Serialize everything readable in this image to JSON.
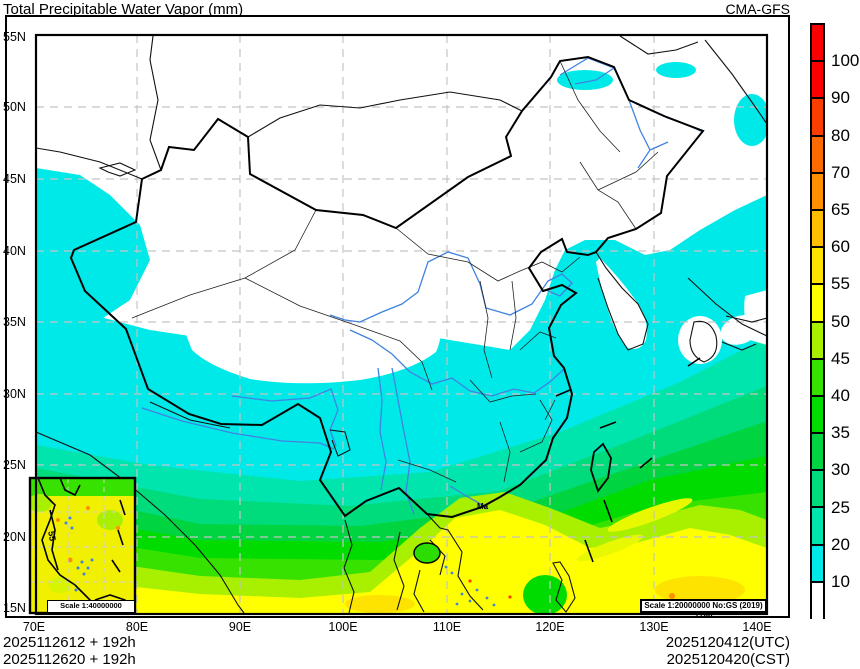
{
  "title": "Total Precipitable Water Vapor (mm)",
  "model_label": "CMA-GFS",
  "axes": {
    "lat_ticks": [
      "55N",
      "50N",
      "45N",
      "40N",
      "35N",
      "30N",
      "25N",
      "20N",
      "15N"
    ],
    "lon_ticks": [
      "70E",
      "80E",
      "90E",
      "100E",
      "110E",
      "120E",
      "130E",
      "140E"
    ]
  },
  "colorbar": {
    "tick_labels": [
      "100",
      "90",
      "80",
      "70",
      "65",
      "60",
      "55",
      "50",
      "45",
      "40",
      "35",
      "30",
      "25",
      "20",
      "10"
    ],
    "segment_colors": [
      "#FB0000",
      "#FB0000",
      "#FC3D00",
      "#FD6A00",
      "#FE9000",
      "#FFBF00",
      "#FFE300",
      "#FFFF00",
      "#A9F000",
      "#38E200",
      "#00DC00",
      "#00D440",
      "#00DC7C",
      "#00E4AE",
      "#00E9E9",
      "#FFFFFF"
    ],
    "units": "mm"
  },
  "annotations": {
    "scale_main": "Scale 1:20000000 No:GS (2019) 1786",
    "scale_inset": "Scale 1:40000000",
    "inset_contour_label": "55",
    "coast_label": "Ma"
  },
  "footer": {
    "run_line1": "2025112612 + 192h",
    "run_line2": "2025112620 + 192h",
    "valid_line1": "2025120412(UTC)",
    "valid_line2": "2025120420(CST)"
  }
}
